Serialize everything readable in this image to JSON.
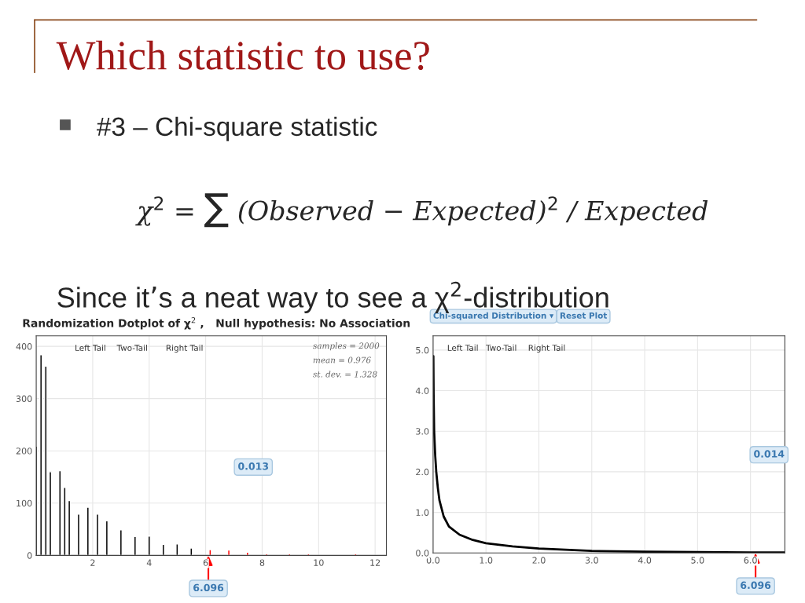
{
  "chart_data": [
    {
      "type": "other",
      "title": "Which statistic to use?",
      "annotations": [
        "#3 – Chi-square statistic",
        "χ$^{2}$ = ∑ (Observed − Expected)$^{2}$ / Expected",
        "Since it’s a neat way to see a χ$^{2}$-distribution"
      ]
    },
    {
      "type": "bar",
      "title": "Randomization Dotplot of χ$^{2}$ ,   Null hypothesis: No Association",
      "x": [
        0.0,
        0.17,
        0.34,
        0.5,
        0.84,
        1.01,
        1.17,
        1.5,
        1.83,
        2.17,
        2.5,
        3.0,
        3.5,
        4.0,
        4.5,
        4.99,
        5.49,
        6.16,
        6.82,
        7.48,
        8.16,
        8.97,
        9.64,
        11.31
      ],
      "values": [
        209,
        384,
        362,
        160,
        162,
        130,
        105,
        79,
        92,
        79,
        66,
        49,
        36,
        37,
        21,
        22,
        14,
        11,
        10,
        6,
        3,
        3,
        3,
        3
      ],
      "colors": [
        "#000000",
        "#000000",
        "#000000",
        "#000000",
        "#000000",
        "#000000",
        "#000000",
        "#000000",
        "#000000",
        "#000000",
        "#000000",
        "#000000",
        "#000000",
        "#000000",
        "#000000",
        "#000000",
        "#000000",
        "#ff0000",
        "#ff0000",
        "#ff0000",
        "#ff0000",
        "#ff0000",
        "#ff0000",
        "#ff0000"
      ],
      "xlim": [
        0,
        12.4
      ],
      "ylim": [
        0,
        420
      ],
      "xticks": [
        2,
        4,
        6,
        8,
        10,
        12
      ],
      "yticks": [
        0,
        100,
        200,
        300,
        400
      ],
      "grid": true,
      "annotations": [
        "Left Tail",
        "Two-Tail",
        "Right Tail",
        "samples = 2000",
        "mean = 0.976",
        "st. dev. = 1.328",
        "0.013",
        {
          "text": "6.096",
          "x": 6.096,
          "y": 0
        }
      ]
    },
    {
      "type": "line",
      "series": [
        {
          "color": "#000000",
          "x": [
            0.005,
            0.01,
            0.02,
            0.04,
            0.06,
            0.09,
            0.12,
            0.2,
            0.3,
            0.5,
            0.75,
            1.0,
            1.5,
            2.0,
            3.0,
            4.0,
            5.0,
            6.0,
            6.65
          ],
          "values": [
            4.85,
            3.9,
            3.0,
            2.4,
            2.0,
            1.6,
            1.3,
            0.9,
            0.65,
            0.45,
            0.32,
            0.24,
            0.16,
            0.11,
            0.05,
            0.03,
            0.02,
            0.01,
            0.01
          ]
        }
      ],
      "xlim": [
        0,
        6.65
      ],
      "ylim": [
        0,
        5.35
      ],
      "xticks": [
        {
          "value": 0,
          "label": "0.0"
        },
        {
          "value": 1,
          "label": "1.0"
        },
        {
          "value": 2,
          "label": "2.0"
        },
        {
          "value": 3,
          "label": "3.0"
        },
        {
          "value": 4,
          "label": "4.0"
        },
        {
          "value": 5,
          "label": "5.0"
        },
        {
          "value": 6,
          "label": "6.0"
        }
      ],
      "yticks": [
        {
          "value": 0,
          "label": "0.0"
        },
        {
          "value": 1,
          "label": "1.0"
        },
        {
          "value": 2,
          "label": "2.0"
        },
        {
          "value": 3,
          "label": "3.0"
        },
        {
          "value": 4,
          "label": "4.0"
        },
        {
          "value": 5,
          "label": "5.0"
        }
      ],
      "grid": true,
      "marker": "none",
      "line_style": "solid",
      "annotations": [
        "Chi-squared Distribution ▾",
        "Reset Plot",
        "Left Tail",
        "Two-Tail",
        "Right Tail",
        "0.014",
        {
          "text": "6.096",
          "x": 6.096,
          "y": 0
        }
      ]
    }
  ]
}
